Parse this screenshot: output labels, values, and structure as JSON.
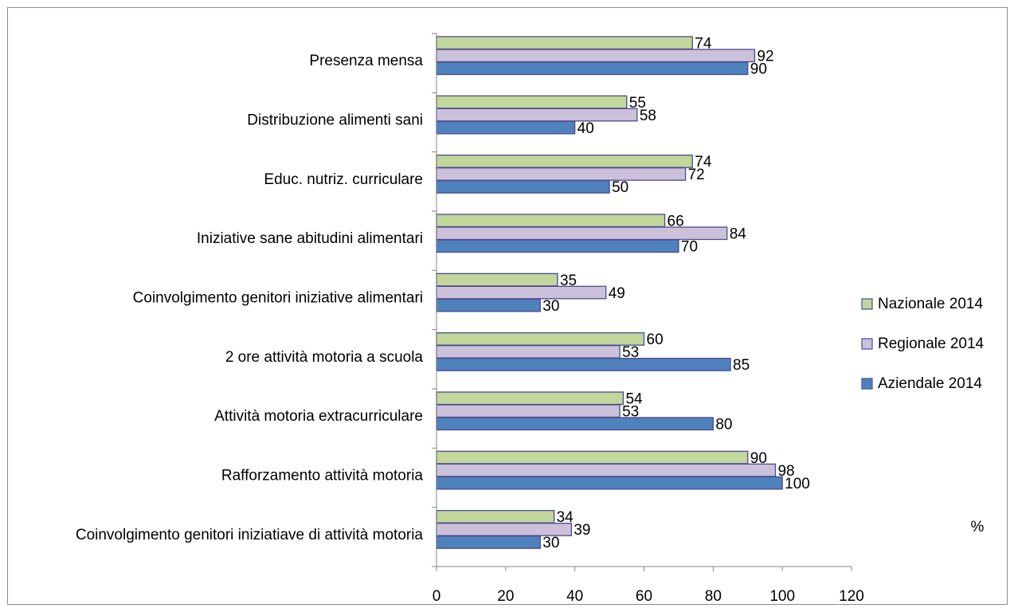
{
  "chart_data": {
    "type": "bar",
    "orientation": "horizontal",
    "categories": [
      "Presenza mensa",
      "Distribuzione alimenti sani",
      "Educ. nutriz. curriculare",
      "Iniziative sane abitudini alimentari",
      "Coinvolgimento genitori iniziative alimentari",
      "2 ore attività motoria a scuola",
      "Attività motoria extracurriculare",
      "Rafforzamento attività motoria",
      "Coinvolgimento genitori iniziatiave di attività motoria"
    ],
    "series": [
      {
        "name": "Nazionale 2014",
        "color": "#c3d69b",
        "values": [
          74,
          55,
          74,
          66,
          35,
          60,
          54,
          90,
          34
        ]
      },
      {
        "name": "Regionale 2014",
        "color": "#ccc1da",
        "values": [
          92,
          58,
          72,
          84,
          49,
          53,
          53,
          98,
          39
        ]
      },
      {
        "name": "Aziendale 2014",
        "color": "#4f81bd",
        "values": [
          90,
          40,
          50,
          70,
          30,
          85,
          80,
          100,
          30
        ]
      }
    ],
    "xlim": [
      0,
      120
    ],
    "xticks": [
      0,
      20,
      40,
      60,
      80,
      100,
      120
    ],
    "unit_label": "%",
    "bar_stroke": "#4b4b8f",
    "legend_position": "right",
    "grid": false
  }
}
